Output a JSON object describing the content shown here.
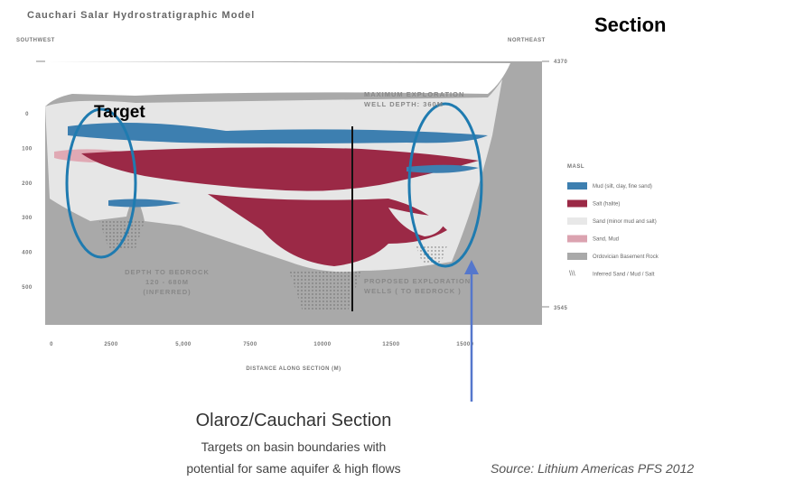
{
  "header": {
    "title": "Cauchari Salar Hydrostratigraphic Model",
    "section": "Section"
  },
  "section": {
    "left_label": "SOUTHWEST",
    "right_label": "NORTHEAST",
    "right_elevations": [
      "4370",
      "3545"
    ],
    "depth_labels": [
      "0",
      "100",
      "200",
      "300",
      "400",
      "500"
    ],
    "distance_labels": [
      "0",
      "2500",
      "5,000",
      "7500",
      "10000",
      "12500",
      "15000"
    ],
    "x_axis_title": "DISTANCE ALONG SECTION (M)",
    "target": "Target",
    "max_depth_note": [
      "MAXIMUM EXPLORATION",
      "WELL DEPTH: 360M"
    ],
    "bedrock_note": [
      "DEPTH TO BEDROCK",
      "120 - 680M",
      "(INFERRED)"
    ],
    "wells_note": [
      "PROPOSED EXPLORATION",
      "WELLS ( TO BEDROCK )"
    ]
  },
  "legend": {
    "title": "MASL",
    "items": [
      "Mud (silt, clay, fine sand)",
      "Salt (halite)",
      "Sand (minor mud and salt)",
      "Sand, Mud",
      "Ordovician Basement Rock",
      "Inferred Sand / Mud / Salt"
    ]
  },
  "caption": {
    "title": "Olaroz/Cauchari Section",
    "lines": [
      "Targets on basin boundaries with",
      "potential for same aquifer & high flows"
    ],
    "source": "Source: Lithium Americas PFS 2012"
  }
}
